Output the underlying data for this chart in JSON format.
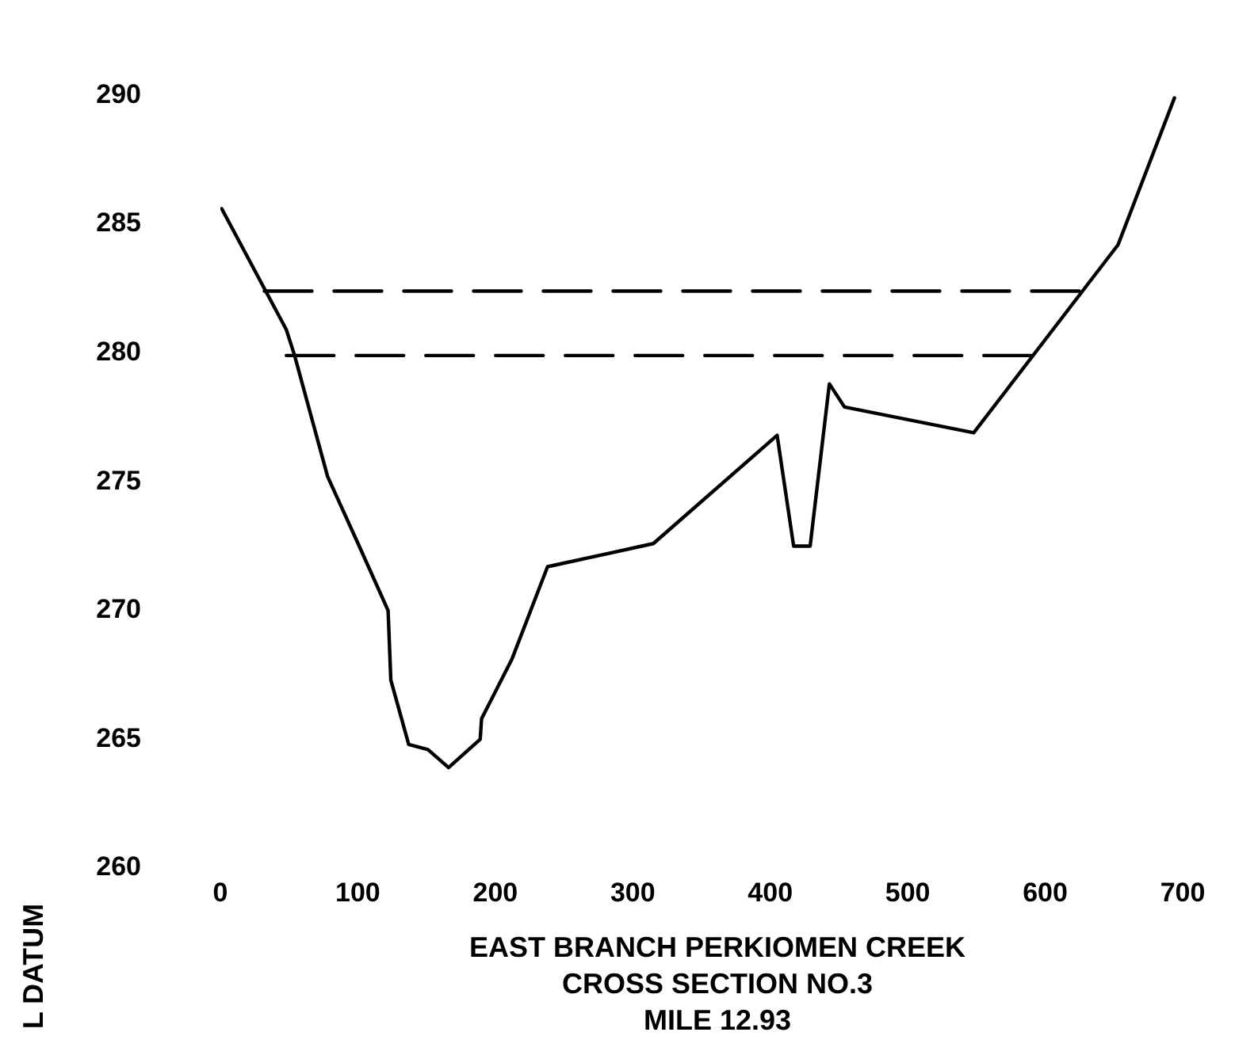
{
  "chart_data": {
    "type": "line",
    "title": "EAST BRANCH PERKIOMEN CREEK",
    "subtitle": "CROSS SECTION NO.3",
    "annotations": [
      "MILE 12.93"
    ],
    "ylabel": "L DATUM",
    "xlim": [
      0,
      700
    ],
    "xticks": [
      0,
      100,
      200,
      300,
      400,
      500,
      600,
      700
    ],
    "ylim": [
      260,
      290
    ],
    "yticks": [
      260,
      265,
      270,
      275,
      280,
      285,
      290
    ],
    "grid": false,
    "legend": false,
    "marker": "none",
    "line_style": "solid",
    "series": [
      {
        "color": "#000000",
        "x": [
          1,
          48,
          54,
          78,
          101,
          122,
          124,
          137,
          151,
          166,
          189,
          190,
          212,
          238,
          315,
          405,
          417,
          429,
          443,
          454,
          548,
          653,
          694
        ],
        "values": [
          285.6,
          280.9,
          279.9,
          275.2,
          272.5,
          270.0,
          267.3,
          264.8,
          264.6,
          263.9,
          265.0,
          265.8,
          268.1,
          271.7,
          272.6,
          276.8,
          272.5,
          272.5,
          278.8,
          277.9,
          276.9,
          284.2,
          289.9
        ]
      },
      {
        "color": "#000000",
        "x": [
          32,
          626
        ],
        "values": [
          282.4,
          282.4
        ],
        "line_style": "dashed"
      },
      {
        "color": "#000000",
        "x": [
          48,
          592
        ],
        "values": [
          279.9,
          279.9
        ],
        "line_style": "dashed"
      }
    ]
  }
}
